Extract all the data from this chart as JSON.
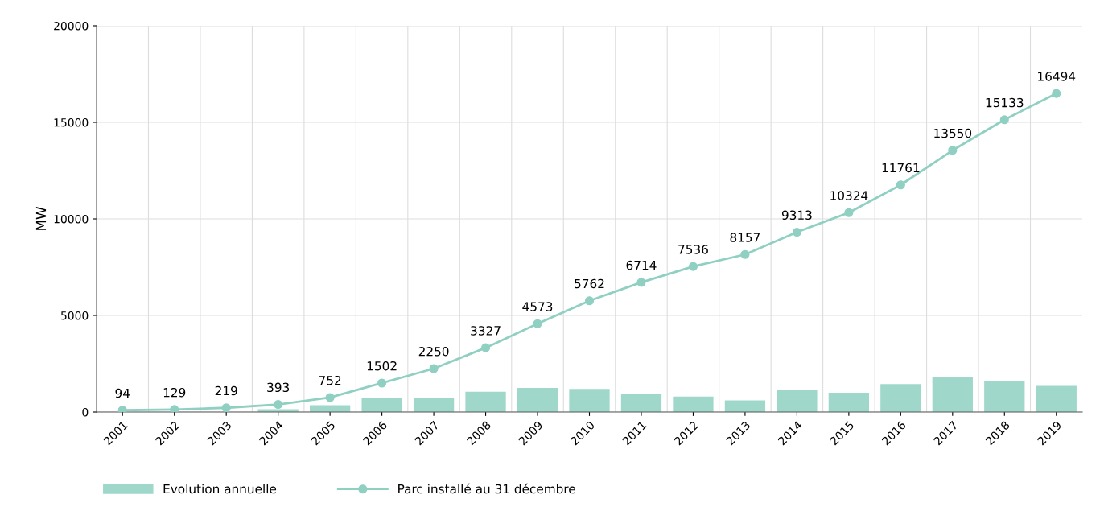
{
  "chart_data": {
    "type": "bar",
    "ylabel": "MW",
    "categories": [
      "2001",
      "2002",
      "2003",
      "2004",
      "2005",
      "2006",
      "2007",
      "2008",
      "2009",
      "2010",
      "2011",
      "2012",
      "2013",
      "2014",
      "2015",
      "2016",
      "2017",
      "2018",
      "2019"
    ],
    "series": [
      {
        "name": "Evolution annuelle",
        "color": "#9fd8cb",
        "values": [
          null,
          null,
          null,
          150,
          350,
          750,
          750,
          1050,
          1250,
          1200,
          950,
          800,
          600,
          1150,
          1000,
          1450,
          1800,
          1600,
          1350
        ]
      },
      {
        "name": "Parc installé au 31 décembre",
        "type": "line",
        "color": "#8fd0c2",
        "marker": "circle",
        "values": [
          94,
          129,
          219,
          393,
          752,
          1502,
          2250,
          3327,
          4573,
          5762,
          6714,
          7536,
          8157,
          9313,
          10324,
          11761,
          13550,
          15133,
          16494
        ],
        "value_labels": [
          "94",
          "129",
          "219",
          "393",
          "752",
          "1502",
          "2250",
          "3327",
          "4573",
          "5762",
          "6714",
          "7536",
          "8157",
          "9313",
          "10324",
          "11761",
          "13550",
          "15133",
          "16494"
        ]
      }
    ],
    "ylim": [
      0,
      20000
    ],
    "yticks": [
      0,
      5000,
      10000,
      15000,
      20000
    ],
    "grid": true,
    "legend": "bottom left"
  }
}
